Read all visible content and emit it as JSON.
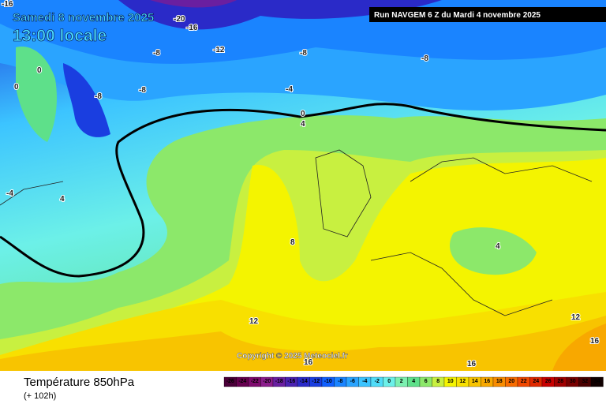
{
  "header": {
    "date": "Samedi 8 novembre 2025",
    "time": "13:00 locale",
    "run": "Run NAVGEM 6 Z du Mardi 4 novembre 2025"
  },
  "map": {
    "copyright": "Copyright © 2025 Meteociel.fr",
    "contour_labels": [
      "-16",
      "-20",
      "-16",
      "-12",
      "-8",
      "-8",
      "-8",
      "-8",
      "-8",
      "-4",
      "0",
      "4",
      "0",
      "0",
      "-4",
      "4",
      "8",
      "12",
      "16",
      "16",
      "12",
      "16",
      "4"
    ]
  },
  "footer": {
    "title": "Température 850hPa",
    "subtitle": "(+ 102h)"
  },
  "scale": {
    "ticks": [
      -26,
      -24,
      -22,
      -20,
      -18,
      -16,
      -14,
      -12,
      -10,
      -8,
      -6,
      -4,
      -2,
      0,
      2,
      4,
      6,
      8,
      10,
      12,
      14,
      16,
      18,
      20,
      22,
      24,
      26,
      28,
      30,
      32,
      34
    ],
    "colors": [
      "#4a0038",
      "#66004f",
      "#7f0a6e",
      "#8c1d8c",
      "#6a1fa0",
      "#4a22b0",
      "#2a2ac8",
      "#1a3ee0",
      "#1060ff",
      "#1a84ff",
      "#2aa4ff",
      "#3cc4ff",
      "#50dcf8",
      "#6cf0e8",
      "#7cf0b0",
      "#5ee08a",
      "#8ce86a",
      "#c8f040",
      "#f4f400",
      "#f8e000",
      "#f8c400",
      "#f8a800",
      "#f88c00",
      "#f86c00",
      "#f04800",
      "#e02800",
      "#c80000",
      "#a00000",
      "#780000",
      "#4a0000",
      "#100000"
    ]
  }
}
